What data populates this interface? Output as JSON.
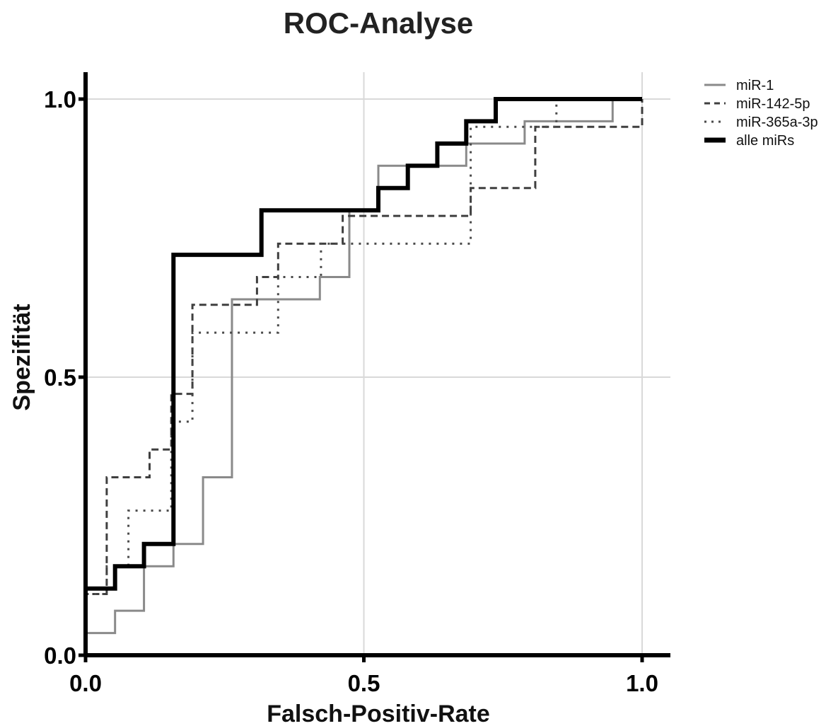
{
  "chart_data": {
    "type": "line",
    "title": "ROC-Analyse",
    "xlabel": "Falsch-Positiv-Rate",
    "ylabel": "Spezifität",
    "xlim": [
      0.0,
      1.0
    ],
    "ylim": [
      0.0,
      1.0
    ],
    "x_ticks": [
      "0.0",
      "0.5",
      "1.0"
    ],
    "y_ticks": [
      "0.0",
      "0.5",
      "1.0"
    ],
    "grid": true,
    "legend_position": "top-right",
    "series": [
      {
        "name": "miR-1",
        "style": "solid",
        "color": "#8a8a8a",
        "points": [
          [
            0.0,
            0.0
          ],
          [
            0.0,
            0.04
          ],
          [
            0.053,
            0.04
          ],
          [
            0.053,
            0.08
          ],
          [
            0.105,
            0.08
          ],
          [
            0.105,
            0.16
          ],
          [
            0.158,
            0.16
          ],
          [
            0.158,
            0.2
          ],
          [
            0.211,
            0.2
          ],
          [
            0.211,
            0.32
          ],
          [
            0.263,
            0.32
          ],
          [
            0.263,
            0.64
          ],
          [
            0.421,
            0.64
          ],
          [
            0.421,
            0.68
          ],
          [
            0.474,
            0.68
          ],
          [
            0.474,
            0.8
          ],
          [
            0.526,
            0.8
          ],
          [
            0.526,
            0.88
          ],
          [
            0.684,
            0.88
          ],
          [
            0.684,
            0.92
          ],
          [
            0.789,
            0.92
          ],
          [
            0.789,
            0.96
          ],
          [
            0.947,
            0.96
          ],
          [
            0.947,
            1.0
          ],
          [
            1.0,
            1.0
          ]
        ]
      },
      {
        "name": "miR-142-5p",
        "style": "dashed",
        "color": "#3f3f3f",
        "points": [
          [
            0.0,
            0.0
          ],
          [
            0.0,
            0.11
          ],
          [
            0.038,
            0.11
          ],
          [
            0.038,
            0.32
          ],
          [
            0.115,
            0.32
          ],
          [
            0.115,
            0.37
          ],
          [
            0.154,
            0.37
          ],
          [
            0.154,
            0.47
          ],
          [
            0.192,
            0.47
          ],
          [
            0.192,
            0.63
          ],
          [
            0.308,
            0.63
          ],
          [
            0.308,
            0.68
          ],
          [
            0.346,
            0.68
          ],
          [
            0.346,
            0.74
          ],
          [
            0.462,
            0.74
          ],
          [
            0.462,
            0.79
          ],
          [
            0.692,
            0.79
          ],
          [
            0.692,
            0.84
          ],
          [
            0.808,
            0.84
          ],
          [
            0.808,
            0.95
          ],
          [
            1.0,
            0.95
          ],
          [
            1.0,
            1.0
          ]
        ]
      },
      {
        "name": "miR-365a-3p",
        "style": "dotted",
        "color": "#4a4a4a",
        "points": [
          [
            0.0,
            0.0
          ],
          [
            0.0,
            0.11
          ],
          [
            0.038,
            0.11
          ],
          [
            0.038,
            0.16
          ],
          [
            0.077,
            0.16
          ],
          [
            0.077,
            0.26
          ],
          [
            0.154,
            0.26
          ],
          [
            0.154,
            0.42
          ],
          [
            0.192,
            0.42
          ],
          [
            0.192,
            0.58
          ],
          [
            0.346,
            0.58
          ],
          [
            0.346,
            0.68
          ],
          [
            0.423,
            0.68
          ],
          [
            0.423,
            0.74
          ],
          [
            0.692,
            0.74
          ],
          [
            0.692,
            0.95
          ],
          [
            0.846,
            0.95
          ],
          [
            0.846,
            1.0
          ],
          [
            1.0,
            1.0
          ]
        ]
      },
      {
        "name": "alle miRs",
        "style": "solid-thick",
        "color": "#000000",
        "points": [
          [
            0.0,
            0.0
          ],
          [
            0.0,
            0.12
          ],
          [
            0.053,
            0.12
          ],
          [
            0.053,
            0.16
          ],
          [
            0.105,
            0.16
          ],
          [
            0.105,
            0.2
          ],
          [
            0.158,
            0.2
          ],
          [
            0.158,
            0.72
          ],
          [
            0.316,
            0.72
          ],
          [
            0.316,
            0.8
          ],
          [
            0.526,
            0.8
          ],
          [
            0.526,
            0.84
          ],
          [
            0.579,
            0.84
          ],
          [
            0.579,
            0.88
          ],
          [
            0.632,
            0.88
          ],
          [
            0.632,
            0.92
          ],
          [
            0.684,
            0.92
          ],
          [
            0.684,
            0.96
          ],
          [
            0.737,
            0.96
          ],
          [
            0.737,
            1.0
          ],
          [
            1.0,
            1.0
          ]
        ]
      }
    ]
  }
}
